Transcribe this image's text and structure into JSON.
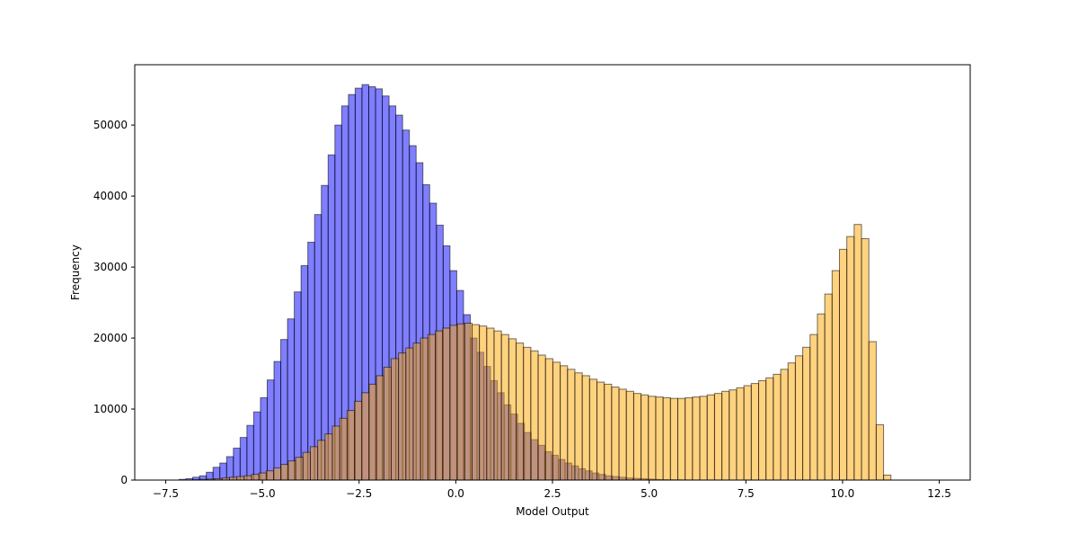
{
  "chart_data": {
    "type": "bar",
    "subtype": "overlaid-histogram",
    "title": "",
    "xlabel": "Model Output",
    "ylabel": "Frequency",
    "xlim": [
      -8.3,
      13.3
    ],
    "ylim": [
      0,
      58500
    ],
    "grid": false,
    "legend": "none",
    "x_ticks": [
      -7.5,
      -5.0,
      -2.5,
      0.0,
      2.5,
      5.0,
      7.5,
      10.0,
      12.5
    ],
    "x_tick_labels": [
      "−7.5",
      "−5.0",
      "−2.5",
      "0.0",
      "2.5",
      "5.0",
      "7.5",
      "10.0",
      "12.5"
    ],
    "y_ticks": [
      0,
      10000,
      20000,
      30000,
      40000,
      50000
    ],
    "y_tick_labels": [
      "0",
      "10000",
      "20000",
      "30000",
      "40000",
      "50000"
    ],
    "series": [
      {
        "color": "#0000ff",
        "edge_color": "#000000",
        "alpha": 0.5,
        "bin_start": -7.5,
        "bin_width": 0.175,
        "values": [
          0,
          0,
          100,
          200,
          400,
          600,
          1100,
          1800,
          2400,
          3300,
          4500,
          6000,
          7700,
          9600,
          11600,
          14100,
          16700,
          19800,
          22700,
          26500,
          30200,
          33500,
          37400,
          41500,
          45800,
          50000,
          52700,
          54300,
          55200,
          55700,
          55400,
          55100,
          54100,
          52700,
          51400,
          49300,
          47100,
          44700,
          41600,
          39000,
          35900,
          33000,
          29500,
          26700,
          23300,
          20000,
          18000,
          16000,
          14000,
          12300,
          10600,
          9300,
          8000,
          6700,
          5700,
          4900,
          4000,
          3500,
          2900,
          2400,
          2000,
          1600,
          1300,
          1000,
          800,
          600,
          500,
          400,
          300,
          250,
          200,
          150,
          100,
          60,
          40,
          30,
          20,
          10,
          5,
          0
        ]
      },
      {
        "color": "#ffa500",
        "edge_color": "#000000",
        "alpha": 0.5,
        "bin_start": -6.8,
        "bin_width": 0.19,
        "values": [
          50,
          100,
          150,
          200,
          300,
          400,
          500,
          600,
          800,
          1000,
          1300,
          1700,
          2200,
          2700,
          3200,
          3900,
          4700,
          5600,
          6500,
          7600,
          8700,
          9800,
          11100,
          12300,
          13500,
          14700,
          15900,
          17100,
          17900,
          18600,
          19300,
          20000,
          20500,
          21000,
          21400,
          21800,
          22000,
          22100,
          21900,
          21700,
          21400,
          21000,
          20500,
          19900,
          19300,
          18700,
          18200,
          17600,
          17100,
          16600,
          16100,
          15600,
          15100,
          14700,
          14200,
          13800,
          13500,
          13100,
          12800,
          12500,
          12200,
          12000,
          11800,
          11700,
          11600,
          11500,
          11500,
          11600,
          11700,
          11800,
          12000,
          12200,
          12500,
          12700,
          13000,
          13300,
          13600,
          14000,
          14400,
          14900,
          15600,
          16500,
          17500,
          18700,
          20500,
          23400,
          26200,
          29500,
          32500,
          34300,
          36000,
          34000,
          19500,
          7800,
          700
        ]
      }
    ]
  }
}
